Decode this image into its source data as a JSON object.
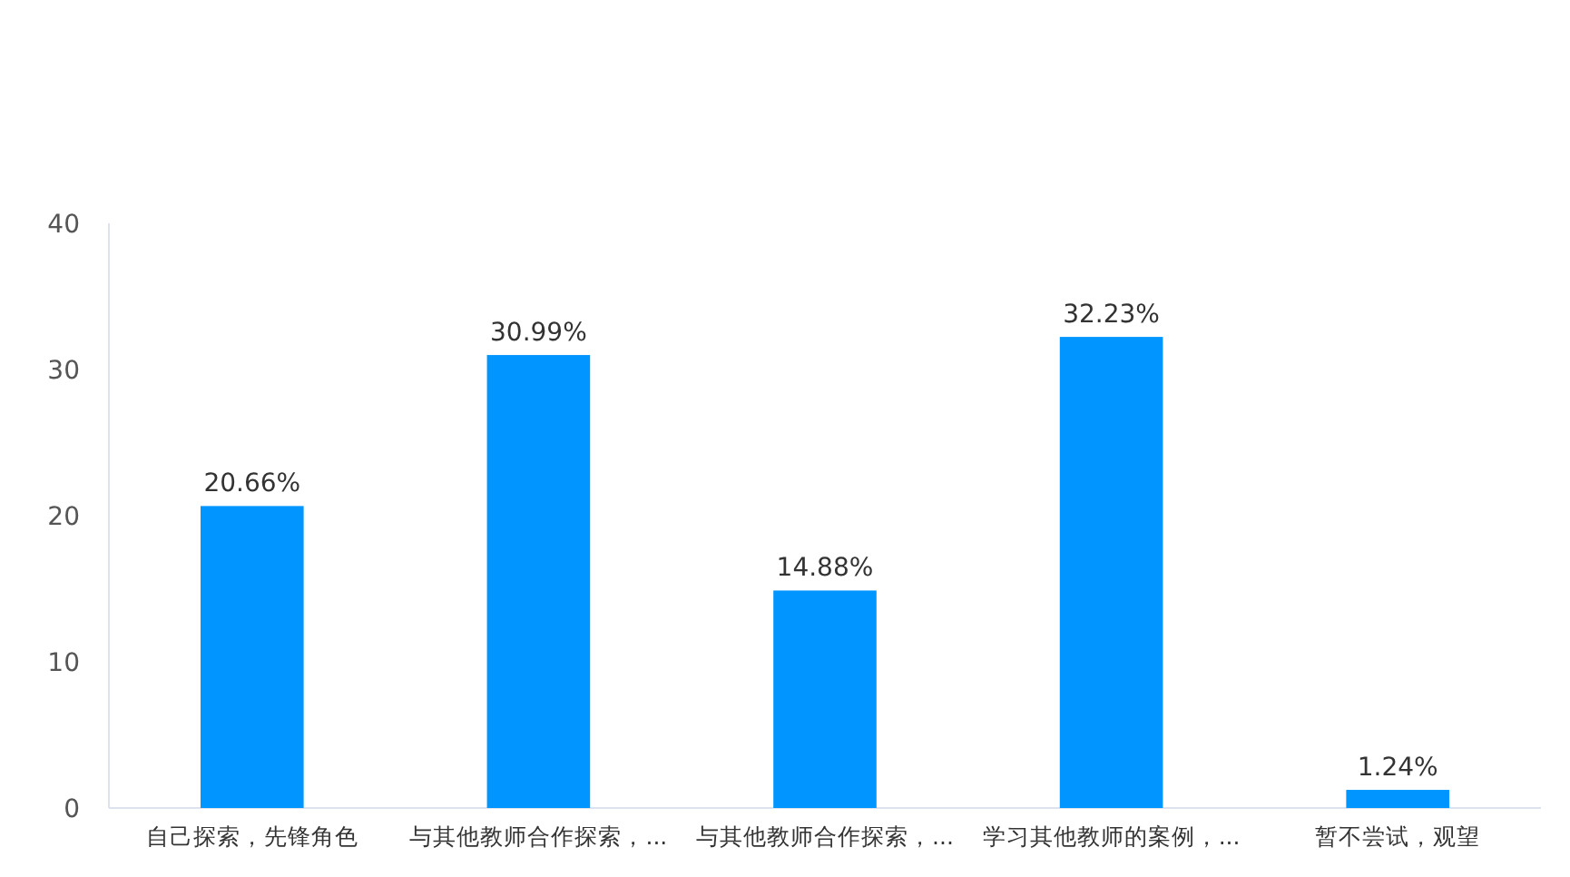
{
  "chart_data": {
    "type": "bar",
    "categories": [
      "自己探索，先锋角色",
      "与其他教师合作探索，...",
      "与其他教师合作探索，...",
      "学习其他教师的案例，...",
      "暂不尝试，观望"
    ],
    "values": [
      20.66,
      30.99,
      14.88,
      32.23,
      1.24
    ],
    "value_labels": [
      "20.66%",
      "30.99%",
      "14.88%",
      "32.23%",
      "1.24%"
    ],
    "color": "#0095ff",
    "ylim": [
      0,
      40
    ],
    "yticks": [
      0,
      10,
      20,
      30,
      40
    ],
    "grid": false
  }
}
